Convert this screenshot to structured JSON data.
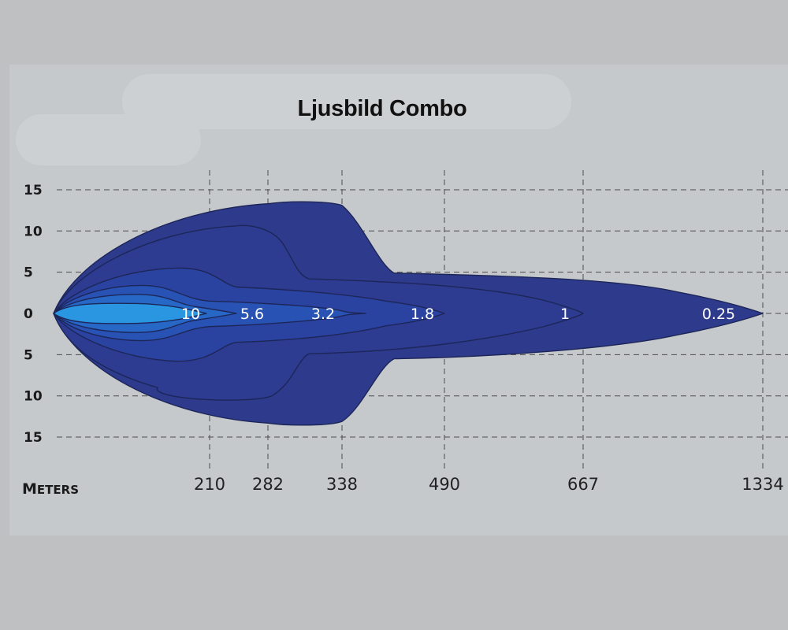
{
  "chart_data": {
    "type": "area",
    "title": "Ljusbild Combo",
    "xlabel": "Meters",
    "ylabel": "",
    "xlim": [
      0,
      1334
    ],
    "ylim": [
      -15,
      15
    ],
    "grid": true,
    "x_ticks": [
      210,
      282,
      338,
      490,
      667,
      1334
    ],
    "x_tick_labels": [
      "210",
      "282",
      "338",
      "490",
      "667",
      "1334"
    ],
    "y_ticks": [
      15,
      10,
      5,
      0,
      -5,
      -10,
      -15
    ],
    "y_tick_labels": [
      "15",
      "10",
      "5",
      "0",
      "5",
      "10",
      "15"
    ],
    "zones": [
      {
        "label": "0.25",
        "reach": 1334,
        "half_width": 13.5,
        "color": "#2e3a8c"
      },
      {
        "label": "1",
        "reach": 667,
        "half_width": 10.5,
        "color": "#2d3b90"
      },
      {
        "label": "1.8",
        "reach": 490,
        "half_width": 5.5,
        "color": "#2b43a0"
      },
      {
        "label": "3.2",
        "reach": 338,
        "half_width": 3.5,
        "color": "#2853b4"
      },
      {
        "label": "5.6",
        "reach": 282,
        "half_width": 2.5,
        "color": "#2768c6"
      },
      {
        "label": "10",
        "reach": 210,
        "half_width": 1.2,
        "color": "#2a95e0"
      }
    ],
    "colors": {
      "outline": "#1d2658",
      "grid": "#4a4a4a",
      "zone_label": "#ffffff"
    }
  }
}
